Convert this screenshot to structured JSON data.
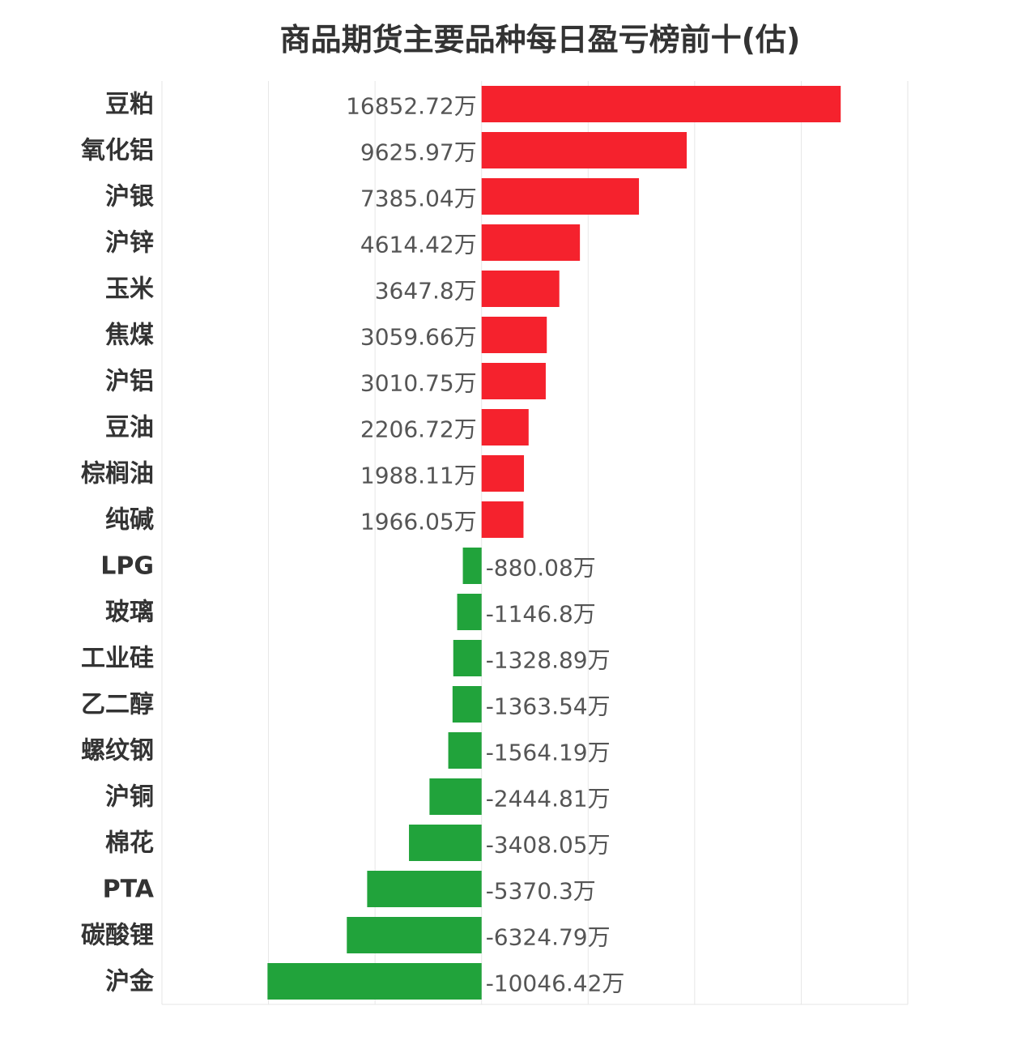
{
  "chart_data": {
    "type": "bar",
    "orientation": "horizontal",
    "title": "商品期货主要品种每日盈亏榜前十(估)",
    "xlabel": "",
    "ylabel": "",
    "unit": "万",
    "xlim": [
      -15000,
      20000
    ],
    "grid": true,
    "categories": [
      "豆粕",
      "氧化铝",
      "沪银",
      "沪锌",
      "玉米",
      "焦煤",
      "沪铝",
      "豆油",
      "棕榈油",
      "纯碱",
      "LPG",
      "玻璃",
      "工业硅",
      "乙二醇",
      "螺纹钢",
      "沪铜",
      "棉花",
      "PTA",
      "碳酸锂",
      "沪金"
    ],
    "values": [
      16852.72,
      9625.97,
      7385.04,
      4614.42,
      3647.8,
      3059.66,
      3010.75,
      2206.72,
      1988.11,
      1966.05,
      -880.08,
      -1146.8,
      -1328.89,
      -1363.54,
      -1564.19,
      -2444.81,
      -3408.05,
      -5370.3,
      -6324.79,
      -10046.42
    ],
    "value_labels": [
      "16852.72万",
      "9625.97万",
      "7385.04万",
      "4614.42万",
      "3647.8万",
      "3059.66万",
      "3010.75万",
      "2206.72万",
      "1988.11万",
      "1966.05万",
      "-880.08万",
      "-1146.8万",
      "-1328.89万",
      "-1363.54万",
      "-1564.19万",
      "-2444.81万",
      "-3408.05万",
      "-5370.3万",
      "-6324.79万",
      "-10046.42万"
    ],
    "colors": {
      "positive": "#f5222d",
      "negative": "#21a33b"
    }
  }
}
